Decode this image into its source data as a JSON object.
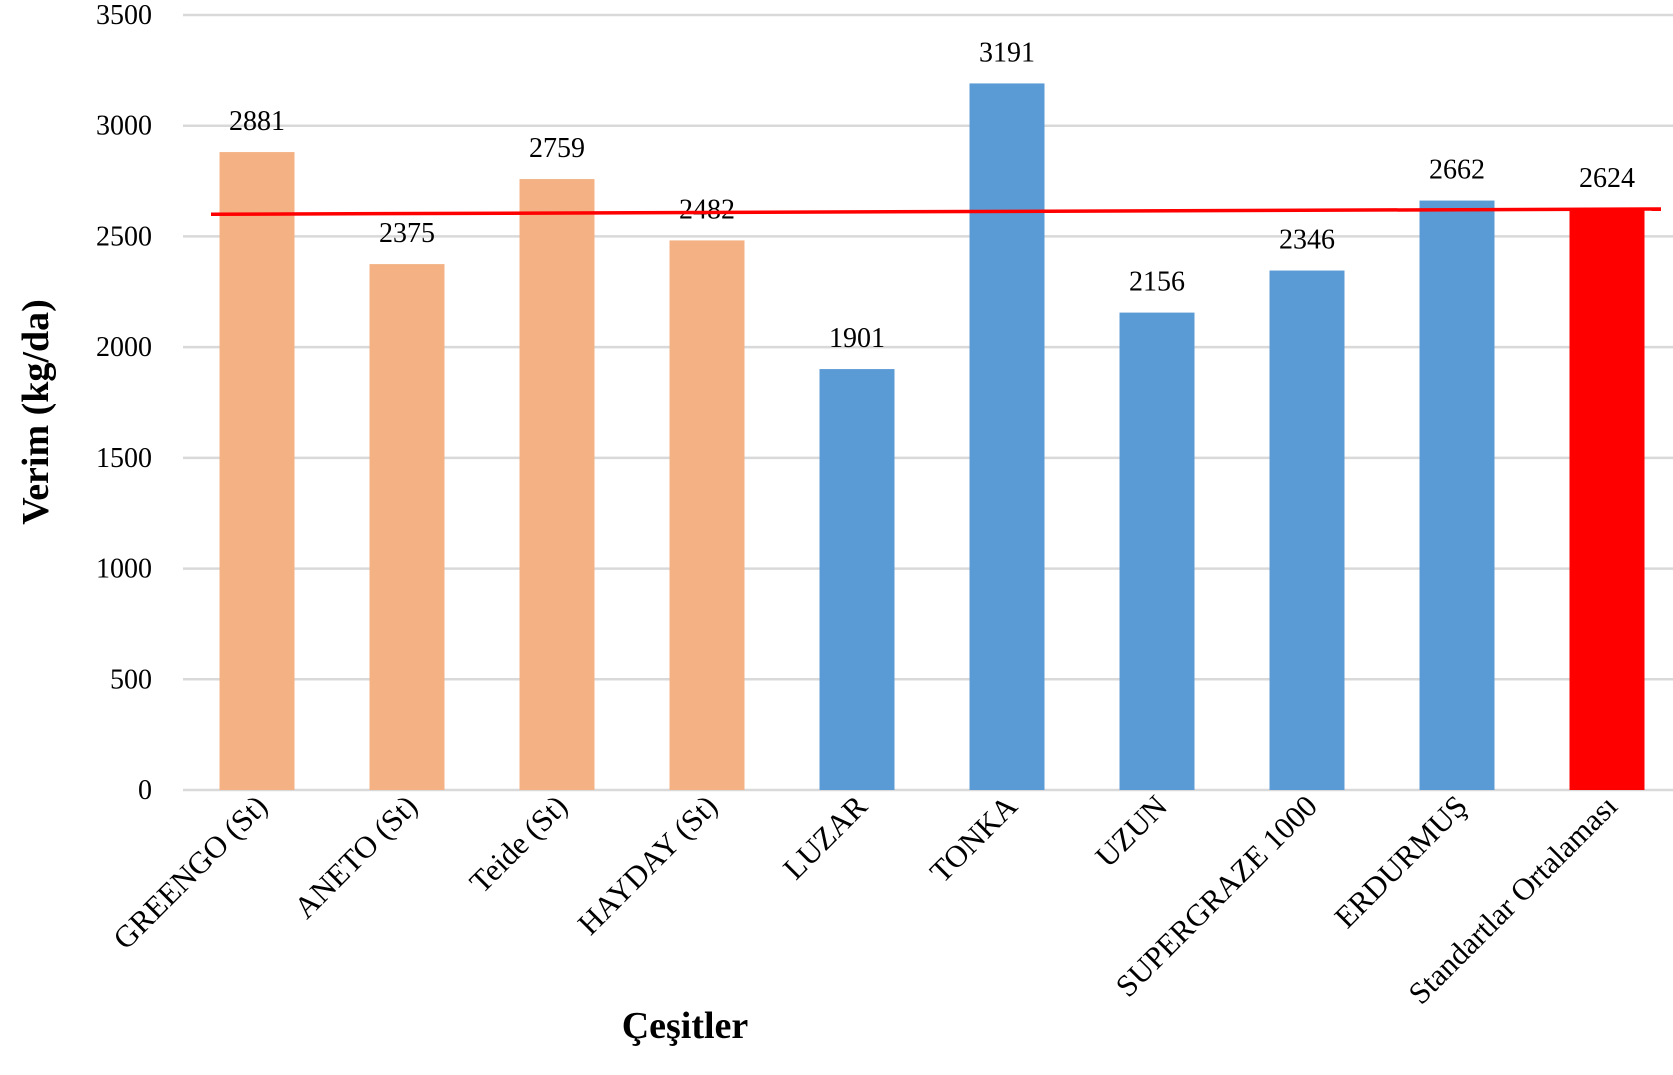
{
  "chart_data": {
    "type": "bar",
    "xlabel": "Çeşitler",
    "ylabel": "Verim  (kg/da)",
    "ylim": [
      0,
      3500
    ],
    "yticks": [
      0,
      500,
      1000,
      1500,
      2000,
      2500,
      3000,
      3500
    ],
    "grid": true,
    "categories": [
      "GREENGO  (St)",
      "ANETO (St)",
      "Teide (St)",
      "HAYDAY (St)",
      "LUZAR",
      "TONKA",
      "UZUN",
      "SUPERGRAZE 1000",
      "ERDURMUŞ",
      "Standartlar Ortalaması"
    ],
    "values": [
      2881,
      2375,
      2759,
      2482,
      1901,
      3191,
      2156,
      2346,
      2662,
      2624
    ],
    "bar_colors": [
      "#F4B183",
      "#F4B183",
      "#F4B183",
      "#F4B183",
      "#5B9BD5",
      "#5B9BD5",
      "#5B9BD5",
      "#5B9BD5",
      "#5B9BD5",
      "#FF0000"
    ],
    "reference_line": {
      "from": 2600,
      "to": 2624,
      "color": "#FF0000"
    },
    "grid_color": "#D9D9D9"
  }
}
